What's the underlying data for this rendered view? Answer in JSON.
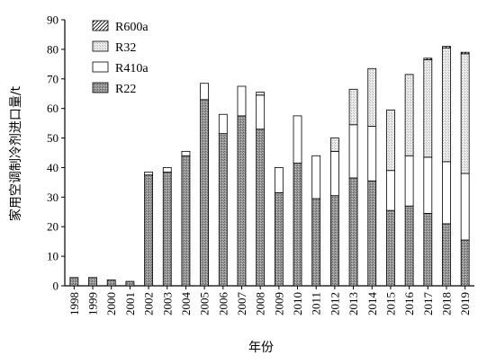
{
  "chart_data": {
    "type": "bar",
    "stacked": true,
    "xlabel": "年份",
    "ylabel": "家用空调制冷剂进口量/t",
    "ylim": [
      0,
      90
    ],
    "yticks": [
      0,
      10,
      20,
      30,
      40,
      50,
      60,
      70,
      80,
      90
    ],
    "categories": [
      "1998",
      "1999",
      "2000",
      "2001",
      "2002",
      "2003",
      "2004",
      "2005",
      "2006",
      "2007",
      "2008",
      "2009",
      "2010",
      "2011",
      "2012",
      "2013",
      "2014",
      "2015",
      "2016",
      "2017",
      "2018",
      "2019"
    ],
    "series": [
      {
        "name": "R22",
        "values": [
          2.8,
          2.8,
          2.0,
          1.5,
          37.5,
          38.5,
          44.0,
          63.0,
          51.5,
          57.5,
          53.0,
          31.5,
          41.5,
          29.5,
          30.5,
          36.5,
          35.5,
          25.5,
          27.0,
          24.5,
          21.0,
          15.5
        ]
      },
      {
        "name": "R410a",
        "values": [
          0,
          0,
          0,
          0,
          1.0,
          1.5,
          1.5,
          5.5,
          6.5,
          10.0,
          11.5,
          8.5,
          16.0,
          14.5,
          15.0,
          18.0,
          18.5,
          13.5,
          17.0,
          19.0,
          21.0,
          22.5
        ]
      },
      {
        "name": "R32",
        "values": [
          0,
          0,
          0,
          0,
          0,
          0,
          0,
          0,
          0,
          0,
          1.0,
          0,
          0,
          0,
          4.5,
          12.0,
          19.5,
          20.5,
          27.5,
          33.0,
          38.5,
          40.5
        ]
      },
      {
        "name": "R600a",
        "values": [
          0,
          0,
          0,
          0,
          0,
          0,
          0,
          0,
          0,
          0,
          0,
          0,
          0,
          0,
          0,
          0,
          0,
          0,
          0,
          0.5,
          0.5,
          0.5
        ]
      }
    ],
    "legend": {
      "placement": "top-left",
      "order": [
        "R600a",
        "R32",
        "R410a",
        "R22"
      ]
    },
    "grid": false
  },
  "colors": {
    "R22": "#8c8c8c",
    "R410a": "#ffffff",
    "R32": "#e0e0e0",
    "R600a": "#ffffff",
    "axis": "#000000"
  }
}
